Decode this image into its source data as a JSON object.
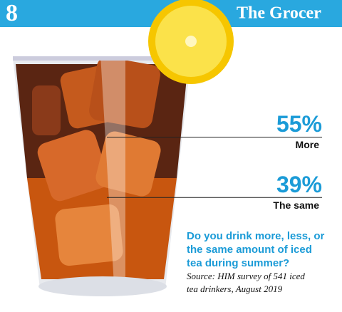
{
  "chart_data": {
    "type": "pictorial",
    "issue": "8",
    "brand": "The Grocer",
    "categories": [
      "More",
      "The same"
    ],
    "values": [
      55,
      39
    ],
    "value_labels": [
      "55%",
      "39%"
    ],
    "color": "#1b9bd7",
    "question": [
      "Do you drink more, less, or",
      "the same amount of iced",
      "tea during summer?"
    ],
    "source": [
      "Source: HIM survey of 541 iced",
      "tea drinkers, August 2019"
    ]
  }
}
